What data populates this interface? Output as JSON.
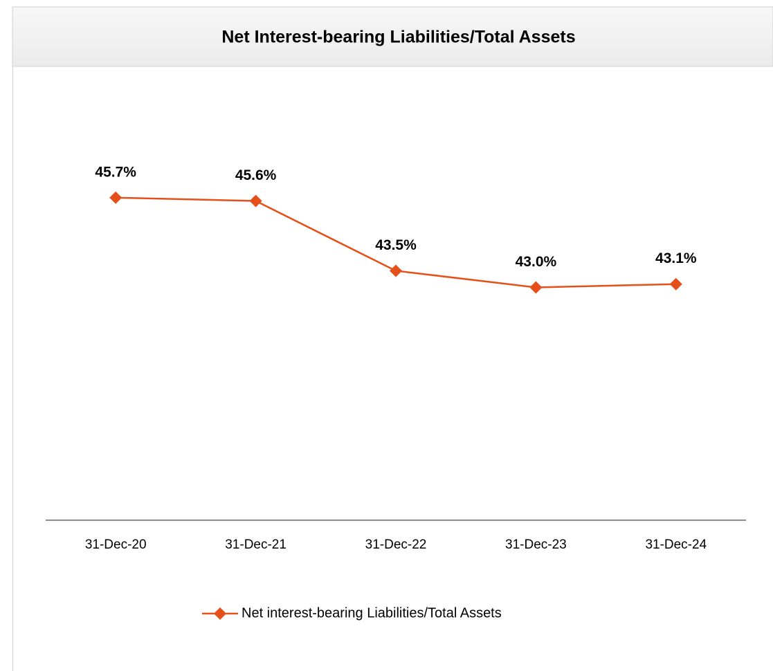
{
  "chart_data": {
    "type": "line",
    "title": "Net Interest-bearing Liabilities/Total Assets",
    "categories": [
      "31-Dec-20",
      "31-Dec-21",
      "31-Dec-22",
      "31-Dec-23",
      "31-Dec-24"
    ],
    "series": [
      {
        "name": "Net interest-bearing Liabilities/Total Assets",
        "color": "#e5501a",
        "values": [
          45.7,
          45.6,
          43.5,
          43.0,
          43.1
        ],
        "value_labels": [
          "45.7%",
          "45.6%",
          "43.5%",
          "43.0%",
          "43.1%"
        ]
      }
    ],
    "ylim": [
      36,
      50
    ],
    "legend": "bottom"
  }
}
